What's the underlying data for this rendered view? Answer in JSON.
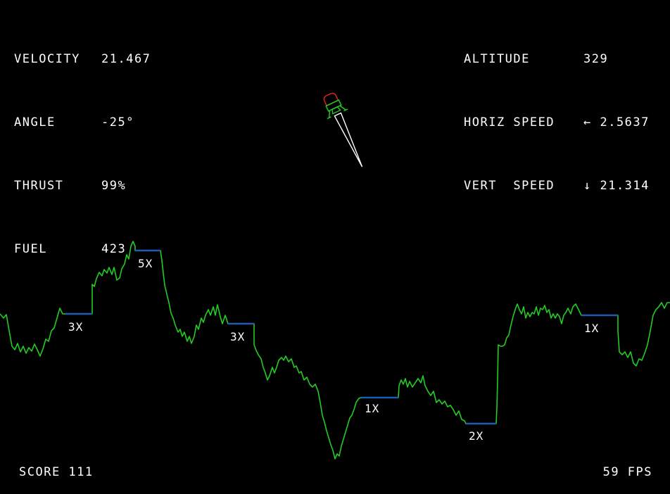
{
  "hud_left": {
    "velocity": {
      "label": "VELOCITY",
      "value": "21.467"
    },
    "angle": {
      "label": "ANGLE",
      "value": "-25°"
    },
    "thrust": {
      "label": "THRUST",
      "value": "99%"
    },
    "fuel": {
      "label": "FUEL",
      "value": "423"
    }
  },
  "hud_right": {
    "altitude": {
      "label": "ALTITUDE",
      "value": "329"
    },
    "horiz_speed": {
      "label": "HORIZ SPEED",
      "value": "← 2.5637"
    },
    "vert_speed": {
      "label": "VERT  SPEED",
      "value": "↓ 21.314"
    }
  },
  "footer": {
    "score": "SCORE 111",
    "fps": "59 FPS"
  },
  "landing_pads": [
    {
      "multiplier": "3X"
    },
    {
      "multiplier": "5X"
    },
    {
      "multiplier": "3X"
    },
    {
      "multiplier": "1X"
    },
    {
      "multiplier": "2X"
    },
    {
      "multiplier": "1X"
    }
  ],
  "colors": {
    "background": "#000000",
    "terrain": "#22cc22",
    "landing_pad": "#1f5bb3",
    "lander_body": "#22cc22",
    "lander_top": "#dd2222",
    "exhaust": "#ffffff",
    "text": "#ffffff"
  }
}
